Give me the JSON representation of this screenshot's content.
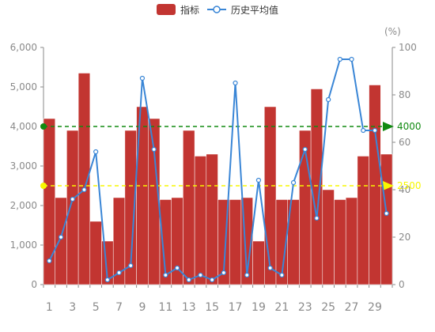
{
  "colors": {
    "bar": "#c23531",
    "line": "#3a86d6",
    "markline_green": "#118a11",
    "markline_yellow": "#f7f700",
    "axis": "#8a8a8a",
    "grid": "#e6e6e6"
  },
  "legend": {
    "bar_label": "指标",
    "line_label": "历史平均值"
  },
  "chart_data": {
    "type": "bar",
    "x": [
      1,
      2,
      3,
      4,
      5,
      6,
      7,
      8,
      9,
      10,
      11,
      12,
      13,
      14,
      15,
      16,
      17,
      18,
      19,
      20,
      21,
      22,
      23,
      24,
      25,
      26,
      27,
      28,
      29,
      30
    ],
    "x_tick_labels": [
      "1",
      "3",
      "5",
      "7",
      "9",
      "11",
      "13",
      "15",
      "17",
      "19",
      "21",
      "23",
      "25",
      "27",
      "29"
    ],
    "series": [
      {
        "name": "指标",
        "type": "bar",
        "axis": "left",
        "values": [
          4200,
          2200,
          3900,
          5350,
          1600,
          1100,
          2200,
          3900,
          4500,
          4200,
          2150,
          2200,
          3900,
          3250,
          3300,
          2150,
          2150,
          2200,
          1100,
          4500,
          2150,
          2150,
          3900,
          4950,
          2400,
          2150,
          2200,
          3250,
          5050,
          3300
        ]
      },
      {
        "name": "历史平均值",
        "type": "line",
        "axis": "right",
        "values": [
          10,
          20,
          36,
          40,
          56,
          2,
          5,
          8,
          87,
          57,
          4,
          7,
          2,
          4,
          2,
          5,
          85,
          4,
          44,
          7,
          4,
          43,
          57,
          28,
          78,
          95,
          95,
          65,
          65,
          30
        ]
      }
    ],
    "y_left": {
      "min": 0,
      "max": 6000,
      "ticks": [
        "0",
        "1,000",
        "2,000",
        "3,000",
        "4,000",
        "5,000",
        "6,000"
      ]
    },
    "y_right": {
      "min": 0,
      "max": 100,
      "ticks": [
        "0",
        "20",
        "40",
        "60",
        "80",
        "100"
      ],
      "unit_label": "(%)"
    },
    "marklines": [
      {
        "value": 4000,
        "label": "4000",
        "color": "#118a11"
      },
      {
        "value": 2500,
        "label": "2500",
        "color": "#f7f700"
      }
    ],
    "legend_position": "top-center",
    "grid": false
  }
}
